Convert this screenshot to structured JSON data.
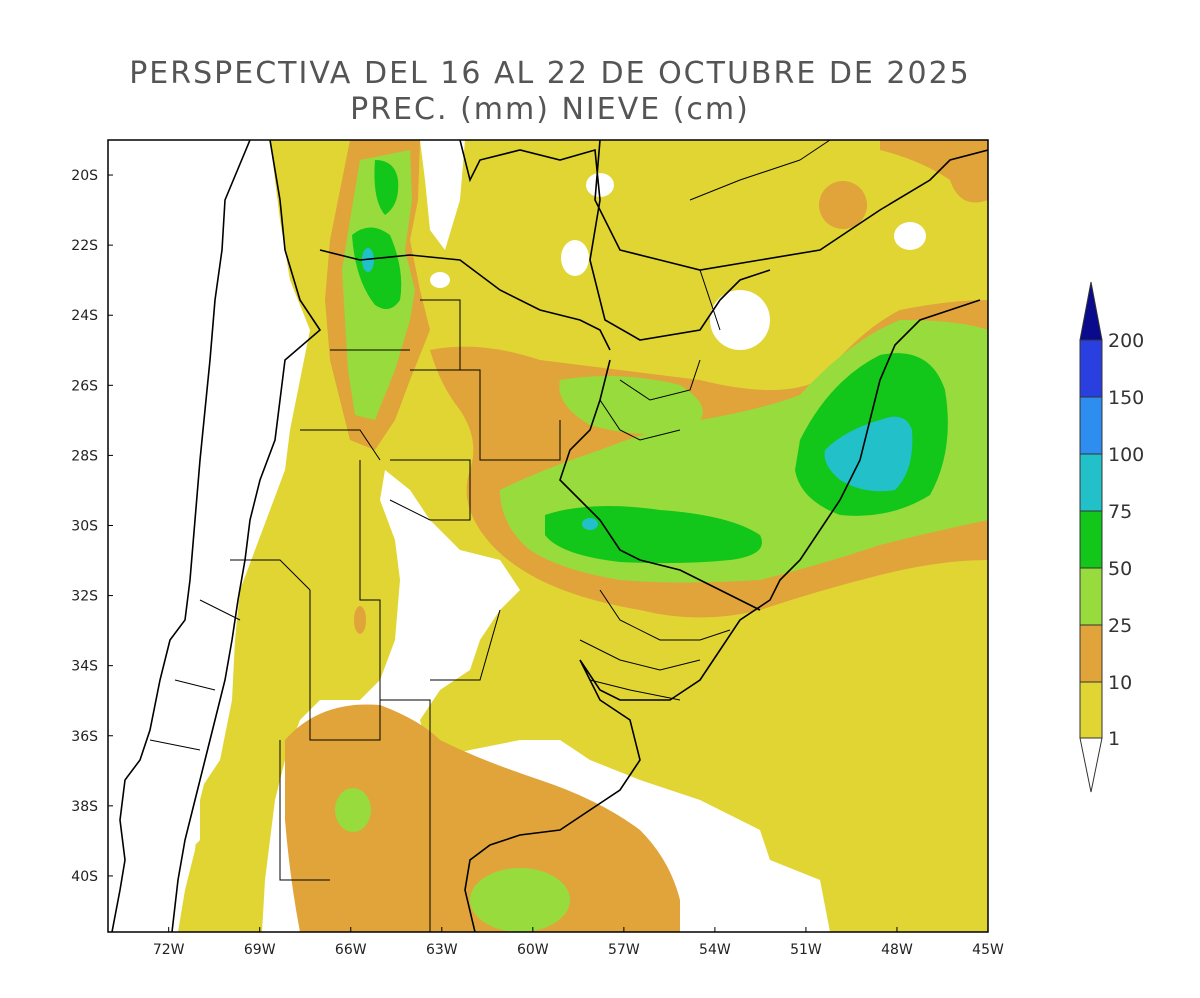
{
  "title_line1": "PERSPECTIVA DEL 16 AL 22 DE OCTUBRE DE 2025",
  "title_line2": "PREC. (mm) NIEVE (cm)",
  "map": {
    "lat_labels": [
      "20S",
      "22S",
      "24S",
      "26S",
      "28S",
      "30S",
      "32S",
      "34S",
      "36S",
      "38S",
      "40S"
    ],
    "lon_labels": [
      "72W",
      "69W",
      "66W",
      "63W",
      "60W",
      "57W",
      "54W",
      "51W",
      "48W",
      "45W"
    ],
    "lat_values": [
      -20,
      -22,
      -24,
      -26,
      -28,
      -30,
      -32,
      -34,
      -36,
      -38,
      -40
    ],
    "lon_values": [
      -72,
      -69,
      -66,
      -63,
      -60,
      -57,
      -54,
      -51,
      -48,
      -45
    ],
    "extent": {
      "lon_min": -74,
      "lon_max": -45,
      "lat_min": -41.6,
      "lat_max": -19
    }
  },
  "colorbar": {
    "labels": [
      "200",
      "150",
      "100",
      "75",
      "50",
      "25",
      "10",
      "1"
    ],
    "colors": {
      "200+": "#0a0a8c",
      "150-200": "#2a3fe0",
      "100-150": "#2e8ef0",
      "75-100": "#22c1c9",
      "50-75": "#12c61a",
      "25-50": "#97dc3c",
      "10-25": "#e0a43a",
      "1-10": "#e1d534",
      "<1": "#ffffff"
    }
  },
  "colors": {
    "c1": "#e1d534",
    "c10": "#e0a43a",
    "c25": "#97dc3c",
    "c50": "#12c61a",
    "c75": "#22c1c9",
    "c100": "#2e8ef0",
    "c150": "#2a3fe0",
    "c200": "#0a0a8c"
  }
}
